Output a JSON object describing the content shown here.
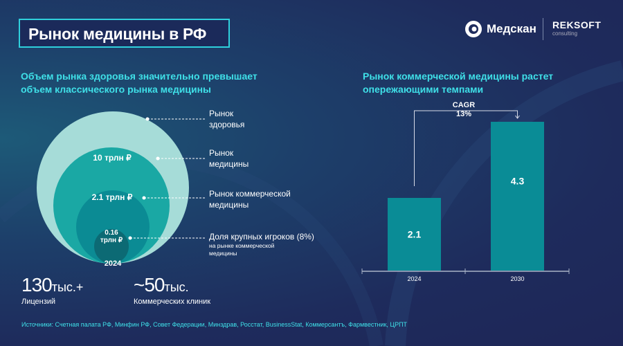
{
  "title": "Рынок медицины в РФ",
  "logos": {
    "medscan": "Медскан",
    "reksoft": "REKSOFT",
    "reksoft_sub": "consulting"
  },
  "left": {
    "subtitle_1": "Объем рынка здоровья значительно превышает",
    "subtitle_2": "объем классического рынка медицины",
    "circles": [
      {
        "name": "Рынок здоровья",
        "label_1": "Рынок",
        "label_2": "здоровья",
        "value": "",
        "color": "#a6dcd8"
      },
      {
        "name": "Рынок медицины",
        "label_1": "Рынок",
        "label_2": "медицины",
        "value": "10 трлн ₽",
        "value_num": 10,
        "color": "#1aa8a4"
      },
      {
        "name": "Рынок коммерческой медицины",
        "label_1": "Рынок коммерческой",
        "label_2": "медицины",
        "value": "2.1 трлн ₽",
        "value_num": 2.1,
        "color": "#0b8b94"
      },
      {
        "name": "Доля крупных игроков",
        "label_1": "Доля крупных игроков (8%)",
        "label_2": "на рынке коммерческой",
        "label_3": "медицины",
        "value_1": "0.16",
        "value_2": "трлн ₽",
        "value_num": 0.16,
        "color": "#0c6a74"
      }
    ],
    "year": "2024"
  },
  "stats": [
    {
      "number": "130",
      "unit": "тыс.",
      "suffix": "+",
      "label": "Лицензий"
    },
    {
      "number": "~50",
      "unit": "тыс.",
      "suffix": "",
      "label": "Коммерческих клиник"
    }
  ],
  "right": {
    "subtitle_1": "Рынок коммерческой медицины растет",
    "subtitle_2": "опережающими темпами"
  },
  "chart_data": {
    "type": "bar",
    "categories": [
      "2024",
      "2030"
    ],
    "values": [
      2.1,
      4.3
    ],
    "value_labels": [
      "2.1",
      "4.3"
    ],
    "annotation": {
      "label": "CAGR",
      "value": "13%"
    },
    "color": "#0a8c96"
  },
  "sources": "Источники: Счетная палата РФ, Минфин РФ, Совет Федерации, Минздрав, Росстат, BusinessStat, Коммерсантъ, Фармвестник, ЦРПТ"
}
